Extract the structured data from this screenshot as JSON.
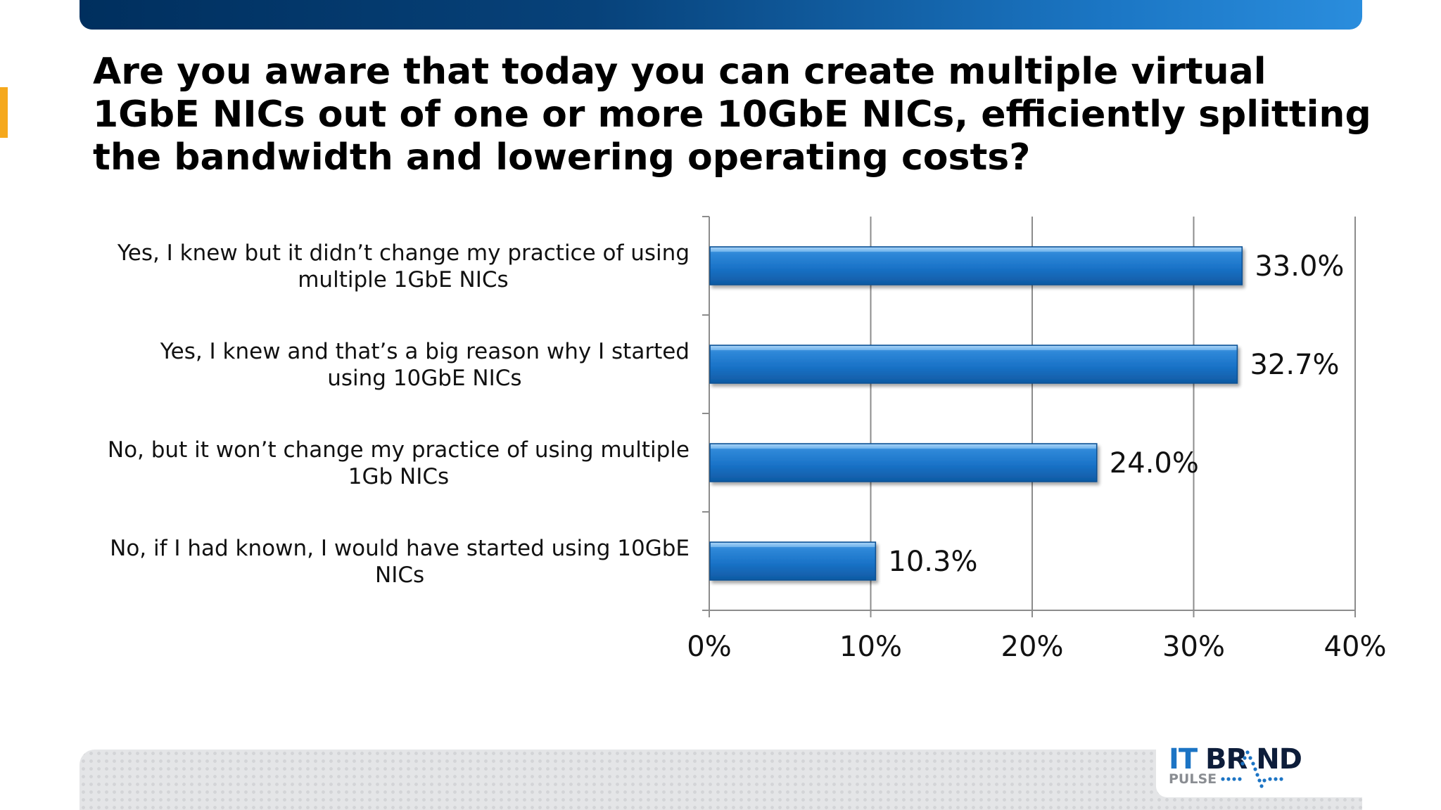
{
  "slide": {
    "title": "Are you aware that today you can create multiple virtual 1GbE NICs out of one or more 10GbE NICs, efficiently splitting the bandwidth and lowering operating costs?"
  },
  "chart_data": {
    "type": "bar",
    "orientation": "horizontal",
    "title": "",
    "xlabel": "",
    "ylabel": "",
    "categories": [
      "Yes, I knew but it didn’t change my practice of using multiple 1GbE NICs",
      "Yes, I knew and that’s a big reason why I started using 10GbE NICs",
      "No, but it won’t change my practice of using multiple 1Gb NICs",
      "No, if I had known, I would have started using 10GbE NICs"
    ],
    "category_lines": [
      [
        "Yes, I knew but it didn’t change my practice of using",
        "multiple 1GbE NICs"
      ],
      [
        "Yes, I knew and that’s a big reason why I started",
        "using 10GbE NICs"
      ],
      [
        "No, but it won’t change my practice of using multiple",
        "1Gb NICs"
      ],
      [
        "No, if I had known, I would have started using 10GbE",
        "NICs"
      ]
    ],
    "values": [
      33.0,
      32.7,
      24.0,
      10.3
    ],
    "value_labels": [
      "33.0%",
      "32.7%",
      "24.0%",
      "10.3%"
    ],
    "xlim": [
      0,
      40
    ],
    "x_ticks": [
      0,
      10,
      20,
      30,
      40
    ],
    "x_tick_labels": [
      "0%",
      "10%",
      "20%",
      "30%",
      "40%"
    ],
    "grid": true,
    "legend": "none",
    "bar_color": "#1a73c8"
  },
  "logo": {
    "it": "IT",
    "brand": "BR ND",
    "pulse": "PULSE"
  },
  "colors": {
    "banner_dark": "#002f5e",
    "banner_light": "#2a8ddd",
    "accent": "#f5a81c",
    "bar": "#1a73c8"
  }
}
